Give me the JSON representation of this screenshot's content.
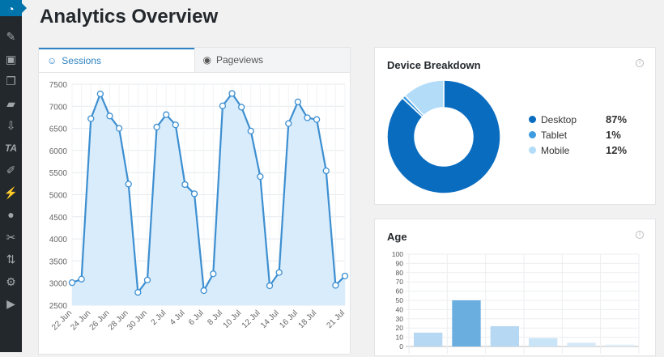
{
  "sidebar": {
    "icons": [
      "dashboard-icon",
      "pin-icon",
      "media-icon",
      "pages-icon",
      "comments-icon",
      "download-icon",
      "ta-icon",
      "appearance-icon",
      "plugins-icon",
      "users-icon",
      "tools-icon",
      "settings-icon",
      "gear-badge-icon",
      "play-icon"
    ],
    "ta_label": "TA"
  },
  "page": {
    "title": "Analytics Overview"
  },
  "tabs": [
    {
      "label": "Sessions",
      "icon": "user-icon",
      "active": true
    },
    {
      "label": "Pageviews",
      "icon": "eye-icon",
      "active": false
    }
  ],
  "device": {
    "title": "Device Breakdown",
    "items": [
      {
        "label": "Desktop",
        "pct": "87%",
        "value": 87,
        "color": "#0a6cbf"
      },
      {
        "label": "Tablet",
        "pct": "1%",
        "value": 1,
        "color": "#3d9be0"
      },
      {
        "label": "Mobile",
        "pct": "12%",
        "value": 12,
        "color": "#b3dcf9"
      }
    ]
  },
  "age": {
    "title": "Age"
  },
  "chart_data": [
    {
      "type": "area",
      "series": [
        {
          "values": [
            3010,
            3090,
            6720,
            7280,
            6780,
            6500,
            5240,
            2790,
            3070,
            6530,
            6810,
            6580,
            5230,
            5020,
            2830,
            3210,
            7010,
            7290,
            6980,
            6440,
            5410,
            2940,
            3240,
            6610,
            7100,
            6740,
            6700,
            5540,
            2950,
            3160
          ]
        }
      ],
      "x": [
        "22 Jun",
        "23 Jun",
        "24 Jun",
        "25 Jun",
        "26 Jun",
        "27 Jun",
        "28 Jun",
        "29 Jun",
        "30 Jun",
        "1 Jul",
        "2 Jul",
        "3 Jul",
        "4 Jul",
        "5 Jul",
        "6 Jul",
        "7 Jul",
        "8 Jul",
        "9 Jul",
        "10 Jul",
        "11 Jul",
        "12 Jul",
        "13 Jul",
        "14 Jul",
        "15 Jul",
        "16 Jul",
        "17 Jul",
        "18 Jul",
        "19 Jul",
        "20 Jul",
        "21 Jul"
      ],
      "xtick_labels": [
        "22 Jun",
        "24 Jun",
        "26 Jun",
        "28 Jun",
        "30 Jun",
        "2 Jul",
        "4 Jul",
        "6 Jul",
        "8 Jul",
        "10 Jul",
        "12 Jul",
        "14 Jul",
        "16 Jul",
        "18 Jul",
        "21 Jul"
      ],
      "yticks": [
        2500,
        3000,
        3500,
        4000,
        4500,
        5000,
        5500,
        6000,
        6500,
        7000,
        7500
      ],
      "ylim": [
        2500,
        7500
      ],
      "grid": true,
      "color": "#3d8fd1",
      "fill": "#d9ecfb"
    },
    {
      "type": "pie",
      "donut": true,
      "values": [
        87,
        1,
        12
      ],
      "categories": [
        "Desktop",
        "Tablet",
        "Mobile"
      ]
    },
    {
      "type": "bar",
      "values": [
        15,
        50,
        22,
        9,
        4,
        2
      ],
      "colors": [
        "#b6d8f3",
        "#6aaee0",
        "#b6d8f3",
        "#c9e3f7",
        "#d6e9f8",
        "#e0eef9"
      ],
      "yticks": [
        0,
        10,
        20,
        30,
        40,
        50,
        60,
        70,
        80,
        90,
        100
      ],
      "ylim": [
        0,
        100
      ],
      "grid": true
    }
  ]
}
